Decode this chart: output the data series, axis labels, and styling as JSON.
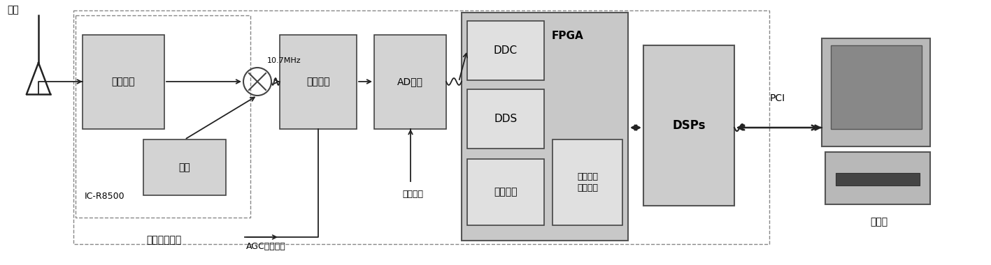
{
  "bg_color": "#ffffff",
  "box_fill": "#d3d3d3",
  "box_fill_inner": "#e0e0e0",
  "fpga_fill": "#c8c8c8",
  "dsps_fill": "#cccccc",
  "box_edge": "#555555",
  "arrow_color": "#222222",
  "text_color": "#000000",
  "antenna_label": "天线",
  "rf_label": "射频前端接收",
  "ic_label": "IC-R8500",
  "lna_label": "低噪放大",
  "bz_label": "本振",
  "agc_label": "AGC控制电压",
  "amp_label": "放大电路",
  "ad_label": "AD采样",
  "clk_label": "采样时钟",
  "freq_label": "10.7MHz",
  "fpga_label": "FPGA",
  "ddc_label": "DDC",
  "dds_label": "DDS",
  "bljb_label": "包络检波",
  "other_label": "其他信号\n处理算法",
  "dsps_label": "DSPs",
  "pci_label": "PCI",
  "pc_label": "计算机"
}
